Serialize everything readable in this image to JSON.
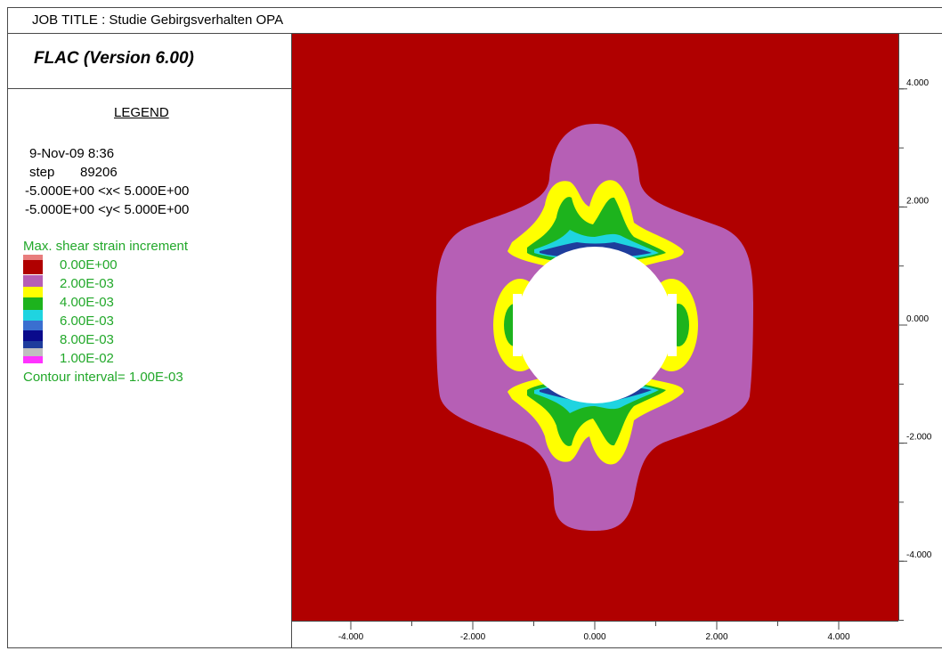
{
  "header": {
    "job_title": "JOB TITLE : Studie Gebirgsverhalten OPA",
    "program": "FLAC (Version 6.00)"
  },
  "legend": {
    "heading": "LEGEND",
    "date_time": "9-Nov-09  8:36",
    "step_label": "step",
    "step_value": "89206",
    "x_range": "-5.000E+00 <x<  5.000E+00",
    "y_range": "-5.000E+00 <y<  5.000E+00",
    "quantity": "Max. shear strain increment",
    "levels": [
      {
        "label": "0.00E+00",
        "color": "#b00000"
      },
      {
        "label": "2.00E-03",
        "color": "#b65fb5"
      },
      {
        "label": "4.00E-03",
        "color": "#ffff00"
      },
      {
        "label": "6.00E-03",
        "color": "#1db31d"
      },
      {
        "label": "8.00E-03",
        "color": "#1fd4e0"
      },
      {
        "label": "1.00E-02",
        "color": "#1e3c9c"
      }
    ],
    "extra_swatches": [
      "#e87d7d",
      "#0a0a8c",
      "#bfbfbf",
      "#ff33ff"
    ],
    "contour_interval": "Contour interval=  1.00E-03"
  },
  "chart_data": {
    "type": "heatmap",
    "title": "",
    "xlabel": "",
    "ylabel": "",
    "xlim": [
      -5,
      5
    ],
    "ylim": [
      -5,
      5
    ],
    "x_ticks": [
      -4,
      -2,
      0,
      2,
      4
    ],
    "y_ticks": [
      4,
      2,
      0,
      -2,
      -4
    ],
    "x_tick_labels": [
      "-4.000",
      "-2.000",
      "0.000",
      "2.000",
      "4.000"
    ],
    "y_tick_labels": [
      "4.000",
      "2.000",
      "0.000",
      "-2.000",
      "-4.000"
    ],
    "background_color": "#b00000",
    "opening": {
      "center": [
        0,
        0
      ],
      "radius": 1.3,
      "color": "#ffffff"
    },
    "purple_zone": {
      "color": "#b65fb5",
      "half_width_x": 2.6,
      "half_height_y": 3.4
    },
    "grid": false
  }
}
